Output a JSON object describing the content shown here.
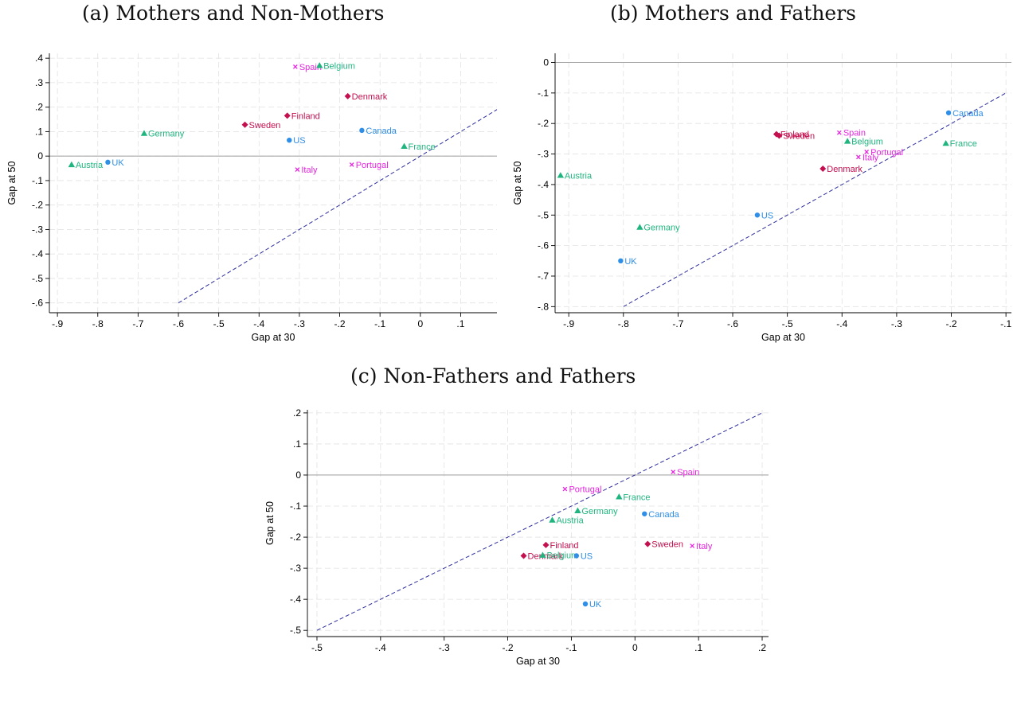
{
  "colors": {
    "green": "#1fb57f",
    "magenta": "#e726e0",
    "crimson": "#c4104f",
    "blue": "#2f8ee6",
    "diag": "#2e2f9b",
    "zero": "#a8a8a8",
    "grid": "#e2e2e2"
  },
  "panels": {
    "a": {
      "title": "(a) Mothers and Non-Mothers"
    },
    "b": {
      "title": "(b) Mothers and Fathers"
    },
    "c": {
      "title": "(c) Non-Fathers and Fathers"
    }
  },
  "chart_data": [
    {
      "type": "scatter",
      "title": "(a) Mothers and Non-Mothers",
      "xlabel": "Gap at 30",
      "ylabel": "Gap at 50",
      "xlim": [
        -0.92,
        0.19
      ],
      "ylim": [
        -0.64,
        0.42
      ],
      "xticks": [
        -0.9,
        -0.8,
        -0.7,
        -0.6,
        -0.5,
        -0.4,
        -0.3,
        -0.2,
        -0.1,
        0,
        0.1
      ],
      "xtick_labels": [
        "-.9",
        "-.8",
        "-.7",
        "-.6",
        "-.5",
        "-.4",
        "-.3",
        "-.2",
        "-.1",
        "0",
        ".1"
      ],
      "yticks": [
        -0.6,
        -0.5,
        -0.4,
        -0.3,
        -0.2,
        -0.1,
        0,
        0.1,
        0.2,
        0.3,
        0.4
      ],
      "ytick_labels": [
        "-.6",
        "-.5",
        "-.4",
        "-.3",
        "-.2",
        "-.1",
        "0",
        ".1",
        ".2",
        ".3",
        ".4"
      ],
      "grid": true,
      "zero_line": true,
      "diagonal": [
        [
          -0.6,
          -0.6
        ],
        [
          0.19,
          0.19
        ]
      ],
      "points": [
        {
          "label": "Spain",
          "x": -0.31,
          "y": 0.365,
          "marker": "x",
          "color": "magenta"
        },
        {
          "label": "Belgium",
          "x": -0.25,
          "y": 0.37,
          "marker": "triangle",
          "color": "green"
        },
        {
          "label": "Denmark",
          "x": -0.18,
          "y": 0.245,
          "marker": "diamond",
          "color": "crimson"
        },
        {
          "label": "Finland",
          "x": -0.33,
          "y": 0.165,
          "marker": "diamond",
          "color": "crimson"
        },
        {
          "label": "Sweden",
          "x": -0.435,
          "y": 0.128,
          "marker": "diamond",
          "color": "crimson"
        },
        {
          "label": "Germany",
          "x": -0.685,
          "y": 0.093,
          "marker": "triangle",
          "color": "green"
        },
        {
          "label": "Canada",
          "x": -0.145,
          "y": 0.105,
          "marker": "circle",
          "color": "blue"
        },
        {
          "label": "US",
          "x": -0.325,
          "y": 0.065,
          "marker": "circle",
          "color": "blue"
        },
        {
          "label": "France",
          "x": -0.04,
          "y": 0.04,
          "marker": "triangle",
          "color": "green"
        },
        {
          "label": "Austria",
          "x": -0.865,
          "y": -0.035,
          "marker": "triangle",
          "color": "green"
        },
        {
          "label": "UK",
          "x": -0.775,
          "y": -0.025,
          "marker": "circle",
          "color": "blue"
        },
        {
          "label": "Italy",
          "x": -0.305,
          "y": -0.055,
          "marker": "x",
          "color": "magenta"
        },
        {
          "label": "Portugal",
          "x": -0.17,
          "y": -0.035,
          "marker": "x",
          "color": "magenta"
        }
      ]
    },
    {
      "type": "scatter",
      "title": "(b) Mothers and Fathers",
      "xlabel": "Gap at 30",
      "ylabel": "Gap at 50",
      "xlim": [
        -0.925,
        -0.09
      ],
      "ylim": [
        -0.82,
        0.03
      ],
      "xticks": [
        -0.9,
        -0.8,
        -0.7,
        -0.6,
        -0.5,
        -0.4,
        -0.3,
        -0.2,
        -0.1
      ],
      "xtick_labels": [
        "-.9",
        "-.8",
        "-.7",
        "-.6",
        "-.5",
        "-.4",
        "-.3",
        "-.2",
        "-.1"
      ],
      "yticks": [
        -0.8,
        -0.7,
        -0.6,
        -0.5,
        -0.4,
        -0.3,
        -0.2,
        -0.1,
        0
      ],
      "ytick_labels": [
        "-.8",
        "-.7",
        "-.6",
        "-.5",
        "-.4",
        "-.3",
        "-.2",
        "-.1",
        "0"
      ],
      "grid": true,
      "zero_line": true,
      "diagonal": [
        [
          -0.8,
          -0.8
        ],
        [
          -0.1,
          -0.1
        ]
      ],
      "points": [
        {
          "label": "Canada",
          "x": -0.205,
          "y": -0.165,
          "marker": "circle",
          "color": "blue"
        },
        {
          "label": "Finland",
          "x": -0.52,
          "y": -0.235,
          "marker": "diamond",
          "color": "crimson"
        },
        {
          "label": "Sweden",
          "x": -0.515,
          "y": -0.24,
          "marker": "diamond",
          "color": "crimson"
        },
        {
          "label": "Spain",
          "x": -0.405,
          "y": -0.23,
          "marker": "x",
          "color": "magenta"
        },
        {
          "label": "Belgium",
          "x": -0.39,
          "y": -0.258,
          "marker": "triangle",
          "color": "green"
        },
        {
          "label": "France",
          "x": -0.21,
          "y": -0.265,
          "marker": "triangle",
          "color": "green"
        },
        {
          "label": "Portugal",
          "x": -0.355,
          "y": -0.293,
          "marker": "x",
          "color": "magenta"
        },
        {
          "label": "Italy",
          "x": -0.37,
          "y": -0.31,
          "marker": "x",
          "color": "magenta"
        },
        {
          "label": "Denmark",
          "x": -0.435,
          "y": -0.348,
          "marker": "diamond",
          "color": "crimson"
        },
        {
          "label": "Austria",
          "x": -0.915,
          "y": -0.37,
          "marker": "triangle",
          "color": "green"
        },
        {
          "label": "US",
          "x": -0.555,
          "y": -0.5,
          "marker": "circle",
          "color": "blue"
        },
        {
          "label": "Germany",
          "x": -0.77,
          "y": -0.54,
          "marker": "triangle",
          "color": "green"
        },
        {
          "label": "UK",
          "x": -0.805,
          "y": -0.65,
          "marker": "circle",
          "color": "blue"
        }
      ]
    },
    {
      "type": "scatter",
      "title": "(c) Non-Fathers and Fathers",
      "xlabel": "Gap at 30",
      "ylabel": "Gap at 50",
      "xlim": [
        -0.515,
        0.21
      ],
      "ylim": [
        -0.52,
        0.21
      ],
      "xticks": [
        -0.5,
        -0.4,
        -0.3,
        -0.2,
        -0.1,
        0,
        0.1,
        0.2
      ],
      "xtick_labels": [
        "-.5",
        "-.4",
        "-.3",
        "-.2",
        "-.1",
        "0",
        ".1",
        ".2"
      ],
      "yticks": [
        -0.5,
        -0.4,
        -0.3,
        -0.2,
        -0.1,
        0,
        0.1,
        0.2
      ],
      "ytick_labels": [
        "-.5",
        "-.4",
        "-.3",
        "-.2",
        "-.1",
        "0",
        ".1",
        ".2"
      ],
      "grid": true,
      "zero_line": true,
      "diagonal": [
        [
          -0.5,
          -0.5
        ],
        [
          0.2,
          0.2
        ]
      ],
      "points": [
        {
          "label": "Spain",
          "x": 0.06,
          "y": 0.01,
          "marker": "x",
          "color": "magenta"
        },
        {
          "label": "Portugal",
          "x": -0.11,
          "y": -0.045,
          "marker": "x",
          "color": "magenta"
        },
        {
          "label": "France",
          "x": -0.025,
          "y": -0.07,
          "marker": "triangle",
          "color": "green"
        },
        {
          "label": "Germany",
          "x": -0.09,
          "y": -0.115,
          "marker": "triangle",
          "color": "green"
        },
        {
          "label": "Canada",
          "x": 0.015,
          "y": -0.125,
          "marker": "circle",
          "color": "blue"
        },
        {
          "label": "Austria",
          "x": -0.13,
          "y": -0.145,
          "marker": "triangle",
          "color": "green"
        },
        {
          "label": "Finland",
          "x": -0.14,
          "y": -0.225,
          "marker": "diamond",
          "color": "crimson"
        },
        {
          "label": "Sweden",
          "x": 0.02,
          "y": -0.222,
          "marker": "diamond",
          "color": "crimson"
        },
        {
          "label": "Italy",
          "x": 0.09,
          "y": -0.228,
          "marker": "x",
          "color": "magenta"
        },
        {
          "label": "Denmark",
          "x": -0.175,
          "y": -0.26,
          "marker": "diamond",
          "color": "crimson"
        },
        {
          "label": "Belgium",
          "x": -0.145,
          "y": -0.258,
          "marker": "triangle",
          "color": "green"
        },
        {
          "label": "US",
          "x": -0.092,
          "y": -0.26,
          "marker": "circle",
          "color": "blue"
        },
        {
          "label": "UK",
          "x": -0.078,
          "y": -0.415,
          "marker": "circle",
          "color": "blue"
        }
      ]
    }
  ]
}
